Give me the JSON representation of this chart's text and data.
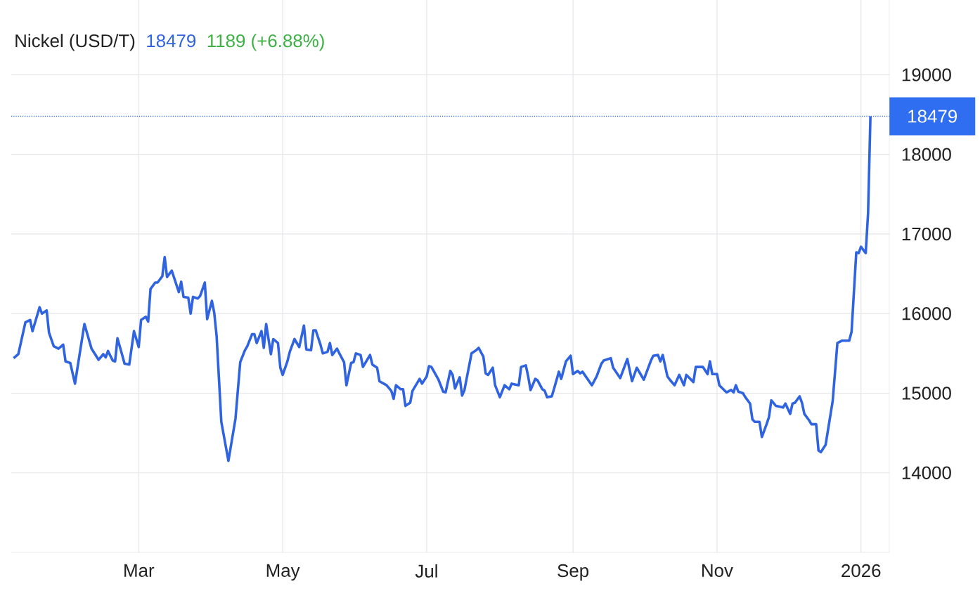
{
  "chart_data": {
    "type": "line",
    "title": "Nickel (USD/T)",
    "annotations": [
      "18479",
      "1189 (+6.88%)"
    ],
    "color": "#2f63e0",
    "x": [
      "2025-01-07",
      "2025-01-09",
      "2025-01-12",
      "2025-01-14",
      "2025-01-15",
      "2025-01-18",
      "2025-01-19",
      "2025-01-21",
      "2025-01-22",
      "2025-01-24",
      "2025-01-26",
      "2025-01-28",
      "2025-01-29",
      "2025-01-31",
      "2025-02-02",
      "2025-02-06",
      "2025-02-09",
      "2025-02-12",
      "2025-02-14",
      "2025-02-15",
      "2025-02-16",
      "2025-02-18",
      "2025-02-19",
      "2025-02-20",
      "2025-02-22",
      "2025-02-23",
      "2025-02-25",
      "2025-02-27",
      "2025-03-01",
      "2025-03-02",
      "2025-03-04",
      "2025-03-05",
      "2025-03-06",
      "2025-03-08",
      "2025-03-09",
      "2025-03-11",
      "2025-03-12",
      "2025-03-13",
      "2025-03-15",
      "2025-03-18",
      "2025-03-19",
      "2025-03-20",
      "2025-03-22",
      "2025-03-23",
      "2025-03-24",
      "2025-03-26",
      "2025-03-27",
      "2025-03-29",
      "2025-03-30",
      "2025-04-01",
      "2025-04-02",
      "2025-04-03",
      "2025-04-05",
      "2025-04-08",
      "2025-04-11",
      "2025-04-13",
      "2025-04-15",
      "2025-04-16",
      "2025-04-18",
      "2025-04-19",
      "2025-04-20",
      "2025-04-22",
      "2025-04-23",
      "2025-04-24",
      "2025-04-26",
      "2025-04-27",
      "2025-04-29",
      "2025-04-30",
      "2025-05-01",
      "2025-05-03",
      "2025-05-04",
      "2025-05-06",
      "2025-05-08",
      "2025-05-10",
      "2025-05-11",
      "2025-05-13",
      "2025-05-14",
      "2025-05-15",
      "2025-05-17",
      "2025-05-18",
      "2025-05-20",
      "2025-05-21",
      "2025-05-22",
      "2025-05-24",
      "2025-05-25",
      "2025-05-27",
      "2025-05-28",
      "2025-05-30",
      "2025-05-31",
      "2025-06-01",
      "2025-06-03",
      "2025-06-04",
      "2025-06-07",
      "2025-06-08",
      "2025-06-10",
      "2025-06-11",
      "2025-06-14",
      "2025-06-16",
      "2025-06-17",
      "2025-06-18",
      "2025-06-20",
      "2025-06-21",
      "2025-06-22",
      "2025-06-24",
      "2025-06-25",
      "2025-06-28",
      "2025-06-29",
      "2025-07-01",
      "2025-07-02",
      "2025-07-03",
      "2025-07-06",
      "2025-07-08",
      "2025-07-09",
      "2025-07-11",
      "2025-07-12",
      "2025-07-13",
      "2025-07-15",
      "2025-07-16",
      "2025-07-17",
      "2025-07-20",
      "2025-07-22",
      "2025-07-23",
      "2025-07-25",
      "2025-07-26",
      "2025-07-27",
      "2025-07-29",
      "2025-07-30",
      "2025-08-01",
      "2025-08-03",
      "2025-08-05",
      "2025-08-06",
      "2025-08-09",
      "2025-08-10",
      "2025-08-12",
      "2025-08-13",
      "2025-08-14",
      "2025-08-16",
      "2025-08-17",
      "2025-08-19",
      "2025-08-20",
      "2025-08-21",
      "2025-08-23",
      "2025-08-24",
      "2025-08-26",
      "2025-08-27",
      "2025-08-29",
      "2025-08-31",
      "2025-09-01",
      "2025-09-03",
      "2025-09-04",
      "2025-09-05",
      "2025-09-09",
      "2025-09-11",
      "2025-09-13",
      "2025-09-14",
      "2025-09-17",
      "2025-09-18",
      "2025-09-21",
      "2025-09-24",
      "2025-09-26",
      "2025-09-28",
      "2025-10-01",
      "2025-10-04",
      "2025-10-05",
      "2025-10-07",
      "2025-10-08",
      "2025-10-09",
      "2025-10-11",
      "2025-10-12",
      "2025-10-14",
      "2025-10-16",
      "2025-10-18",
      "2025-10-19",
      "2025-10-20",
      "2025-10-22",
      "2025-10-23",
      "2025-10-26",
      "2025-10-28",
      "2025-10-29",
      "2025-10-30",
      "2025-11-01",
      "2025-11-02",
      "2025-11-05",
      "2025-11-07",
      "2025-11-08",
      "2025-11-09",
      "2025-11-10",
      "2025-11-12",
      "2025-11-13",
      "2025-11-15",
      "2025-11-16",
      "2025-11-17",
      "2025-11-19",
      "2025-11-20",
      "2025-11-22",
      "2025-11-23",
      "2025-11-24",
      "2025-11-26",
      "2025-11-29",
      "2025-11-30",
      "2025-12-02",
      "2025-12-03",
      "2025-12-04",
      "2025-12-06",
      "2025-12-07",
      "2025-12-08",
      "2025-12-10",
      "2025-12-11",
      "2025-12-13",
      "2025-12-14",
      "2025-12-15",
      "2025-12-17",
      "2025-12-20",
      "2025-12-22",
      "2025-12-24",
      "2025-12-27",
      "2025-12-28",
      "2025-12-30",
      "2025-12-31",
      "2026-01-01",
      "2026-01-03",
      "2026-01-04",
      "2026-01-05"
    ],
    "values": [
      15440,
      15490,
      15890,
      15920,
      15780,
      16080,
      16000,
      16040,
      15760,
      15590,
      15560,
      15610,
      15400,
      15380,
      15120,
      15870,
      15560,
      15420,
      15490,
      15450,
      15530,
      15410,
      15400,
      15690,
      15480,
      15370,
      15360,
      15780,
      15580,
      15920,
      15960,
      15900,
      16310,
      16390,
      16390,
      16470,
      16710,
      16460,
      16540,
      16270,
      16400,
      16210,
      16200,
      16000,
      16210,
      16190,
      16220,
      16390,
      15930,
      16160,
      16010,
      15720,
      14640,
      14150,
      14680,
      15390,
      15540,
      15590,
      15740,
      15740,
      15630,
      15780,
      15570,
      15870,
      15490,
      15680,
      15630,
      15320,
      15230,
      15400,
      15520,
      15680,
      15580,
      15850,
      15550,
      15540,
      15790,
      15790,
      15610,
      15500,
      15520,
      15630,
      15480,
      15560,
      15500,
      15390,
      15100,
      15380,
      15390,
      15500,
      15480,
      15330,
      15480,
      15360,
      15320,
      15150,
      15100,
      15030,
      14930,
      15100,
      15050,
      15050,
      14840,
      14880,
      15030,
      15180,
      15120,
      15210,
      15340,
      15330,
      15170,
      15020,
      15010,
      15280,
      15230,
      15060,
      15200,
      14970,
      15040,
      15500,
      15540,
      15570,
      15460,
      15250,
      15230,
      15320,
      15100,
      14950,
      15100,
      15050,
      15120,
      15100,
      15330,
      15350,
      15210,
      15040,
      15180,
      15160,
      15050,
      15030,
      14950,
      14960,
      15060,
      15270,
      15180,
      15400,
      15470,
      15240,
      15280,
      15250,
      15270,
      15100,
      15210,
      15370,
      15410,
      15440,
      15320,
      15190,
      15430,
      15150,
      15320,
      15170,
      15410,
      15470,
      15480,
      15400,
      15480,
      15210,
      15170,
      15100,
      15230,
      15100,
      15230,
      15200,
      15140,
      15330,
      15330,
      15240,
      15400,
      15240,
      15240,
      15100,
      15010,
      15040,
      15010,
      15100,
      15020,
      15000,
      14950,
      14870,
      14670,
      14640,
      14640,
      14450,
      14610,
      14700,
      14910,
      14840,
      14820,
      14870,
      14740,
      14870,
      14880,
      14960,
      14880,
      14740,
      14660,
      14610,
      14610,
      14280,
      14260,
      14350,
      14900,
      15630,
      15660,
      15660,
      15770,
      16770,
      16760,
      16840,
      16760,
      17260,
      18479
    ],
    "xlim": [
      "2025-01-06",
      "2026-01-13"
    ],
    "ylim": [
      13000,
      19940
    ],
    "xticks": [
      {
        "value": "2025-03-01",
        "label": "Mar"
      },
      {
        "value": "2025-05-01",
        "label": "May"
      },
      {
        "value": "2025-07-01",
        "label": "Jul"
      },
      {
        "value": "2025-09-01",
        "label": "Sep"
      },
      {
        "value": "2025-11-01",
        "label": "Nov"
      },
      {
        "value": "2026-01-01",
        "label": "2026"
      }
    ],
    "yticks": [
      14000,
      15000,
      16000,
      17000,
      18000,
      19000
    ],
    "grid": true,
    "ref_lines": [
      {
        "axis": "y",
        "value": 18479,
        "label": "18479",
        "color": "#2f6ef0",
        "line_style": "dotted"
      }
    ]
  }
}
